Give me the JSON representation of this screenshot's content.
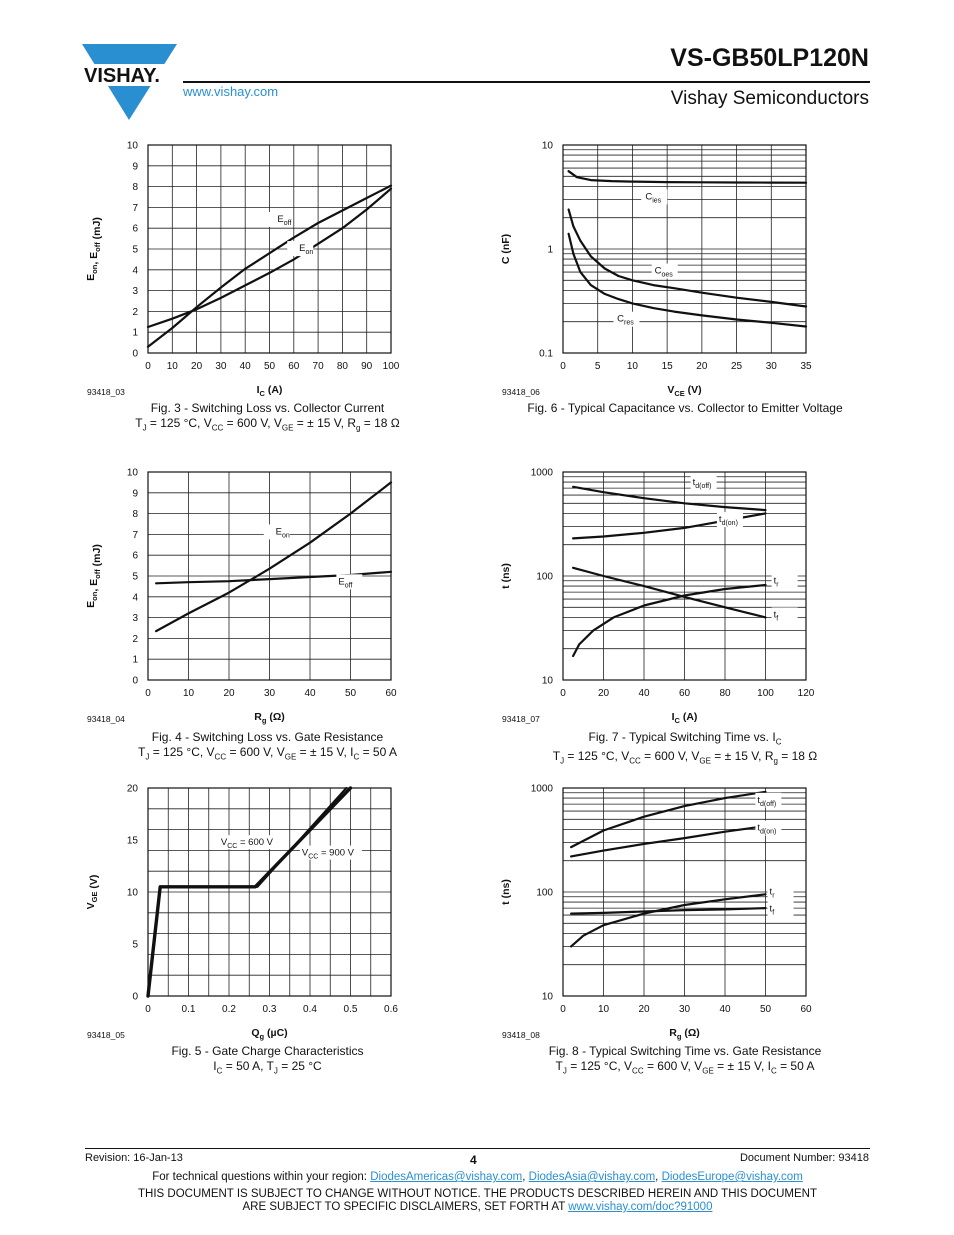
{
  "header": {
    "brand": "VISHAY.",
    "website": "www.vishay.com",
    "part_number": "VS-GB50LP120N",
    "company": "Vishay Semiconductors"
  },
  "figures": [
    {
      "id": "93418_03",
      "caption_1": "Fig. 3 - Switching Loss vs. Collector Current",
      "caption_2": "TJ = 125 °C, VCC = 600 V, VGE = ± 15 V, Rg = 18 Ω"
    },
    {
      "id": "93418_06",
      "caption_1": "Fig. 6 - Typical Capacitance vs. Collector to Emitter Voltage",
      "caption_2": ""
    },
    {
      "id": "93418_04",
      "caption_1": "Fig. 4 - Switching Loss vs. Gate Resistance",
      "caption_2": "TJ = 125 °C, VCC = 600 V, VGE = ± 15 V, IC = 50 A"
    },
    {
      "id": "93418_07",
      "caption_1": "Fig. 7 - Typical Switching Time vs. IC",
      "caption_2": "TJ = 125 °C, VCC = 600 V, VGE = ± 15 V, Rg = 18 Ω"
    },
    {
      "id": "93418_05",
      "caption_1": "Fig. 5 - Gate Charge Characteristics",
      "caption_2": "IC = 50 A, TJ = 25 °C"
    },
    {
      "id": "93418_08",
      "caption_1": "Fig. 8 - Typical Switching Time vs. Gate Resistance",
      "caption_2": "TJ = 125 °C, VCC = 600 V, VGE = ± 15 V, IC = 50 A"
    }
  ],
  "chart_data": [
    {
      "type": "line",
      "id": "93418_03",
      "scale": "linear",
      "xlabel": "IC (A)",
      "ylabel": "Eon, Eoff (mJ)",
      "xlim": [
        0,
        100
      ],
      "ylim": [
        0,
        10
      ],
      "xticks": [
        0,
        10,
        20,
        30,
        40,
        50,
        60,
        70,
        80,
        90,
        100
      ],
      "yticks": [
        0,
        1,
        2,
        3,
        4,
        5,
        6,
        7,
        8,
        9,
        10
      ],
      "series": [
        {
          "name": "Eoff",
          "x": [
            0,
            10,
            20,
            30,
            40,
            50,
            60,
            70,
            80,
            90,
            100
          ],
          "y": [
            1.25,
            1.65,
            2.1,
            2.65,
            3.25,
            3.85,
            4.5,
            5.25,
            6.0,
            6.9,
            7.9
          ]
        },
        {
          "name": "Eon",
          "x": [
            0,
            10,
            20,
            30,
            40,
            50,
            60,
            70,
            80,
            90,
            100
          ],
          "y": [
            0.3,
            1.2,
            2.2,
            3.15,
            4.05,
            4.8,
            5.55,
            6.25,
            6.85,
            7.45,
            8.05
          ]
        }
      ]
    },
    {
      "type": "line",
      "id": "93418_06",
      "scale": "log-y",
      "xlabel": "VCE (V)",
      "ylabel": "C (nF)",
      "xlim": [
        0,
        35
      ],
      "ylim": [
        0.1,
        10
      ],
      "xticks": [
        0,
        5,
        10,
        15,
        20,
        25,
        30,
        35
      ],
      "yticks": [
        0.1,
        1,
        10
      ],
      "series": [
        {
          "name": "Cies",
          "x": [
            0.8,
            2,
            4,
            7,
            10,
            15,
            20,
            25,
            30,
            35
          ],
          "y": [
            5.6,
            4.9,
            4.6,
            4.5,
            4.45,
            4.4,
            4.38,
            4.36,
            4.35,
            4.34
          ]
        },
        {
          "name": "Coes",
          "x": [
            0.8,
            1.5,
            2.5,
            4,
            6,
            8,
            10,
            13,
            16,
            20,
            25,
            30,
            35
          ],
          "y": [
            2.4,
            1.65,
            1.2,
            0.85,
            0.65,
            0.55,
            0.5,
            0.45,
            0.42,
            0.38,
            0.34,
            0.31,
            0.28
          ]
        },
        {
          "name": "Cres",
          "x": [
            0.8,
            1.5,
            2.5,
            4,
            6,
            8,
            10,
            13,
            16,
            20,
            25,
            30,
            35
          ],
          "y": [
            1.4,
            0.9,
            0.6,
            0.45,
            0.37,
            0.33,
            0.3,
            0.27,
            0.25,
            0.23,
            0.21,
            0.195,
            0.18
          ]
        }
      ]
    },
    {
      "type": "line",
      "id": "93418_04",
      "scale": "linear",
      "xlabel": "Rg (Ω)",
      "ylabel": "Eon, Eoff (mJ)",
      "xlim": [
        0,
        60
      ],
      "ylim": [
        0,
        10
      ],
      "xticks": [
        0,
        10,
        20,
        30,
        40,
        50,
        60
      ],
      "yticks": [
        0,
        1,
        2,
        3,
        4,
        5,
        6,
        7,
        8,
        9,
        10
      ],
      "series": [
        {
          "name": "Eon",
          "x": [
            2,
            10,
            20,
            30,
            40,
            50,
            60
          ],
          "y": [
            2.35,
            3.2,
            4.2,
            5.35,
            6.6,
            8.0,
            9.5
          ]
        },
        {
          "name": "Eoff",
          "x": [
            2,
            10,
            20,
            30,
            40,
            50,
            60
          ],
          "y": [
            4.65,
            4.7,
            4.75,
            4.85,
            4.95,
            5.05,
            5.2
          ]
        }
      ]
    },
    {
      "type": "line",
      "id": "93418_07",
      "scale": "log-y",
      "xlabel": "IC (A)",
      "ylabel": "t (ns)",
      "xlim": [
        0,
        120
      ],
      "ylim": [
        10,
        1000
      ],
      "xticks": [
        0,
        20,
        40,
        60,
        80,
        100,
        120
      ],
      "yticks": [
        10,
        100,
        1000
      ],
      "series": [
        {
          "name": "td(off)",
          "x": [
            5,
            20,
            40,
            60,
            80,
            100
          ],
          "y": [
            720,
            640,
            560,
            500,
            460,
            430
          ]
        },
        {
          "name": "td(on)",
          "x": [
            5,
            20,
            40,
            60,
            80,
            100
          ],
          "y": [
            230,
            240,
            260,
            290,
            340,
            400
          ]
        },
        {
          "name": "tr",
          "x": [
            5,
            8,
            15,
            25,
            40,
            60,
            80,
            100
          ],
          "y": [
            17,
            22,
            30,
            40,
            52,
            65,
            75,
            82
          ]
        },
        {
          "name": "tf",
          "x": [
            5,
            20,
            40,
            60,
            80,
            100
          ],
          "y": [
            120,
            100,
            80,
            63,
            50,
            40
          ]
        }
      ]
    },
    {
      "type": "line",
      "id": "93418_05",
      "scale": "linear",
      "xlabel": "Qg (µC)",
      "ylabel": "VGE (V)",
      "xlim": [
        0,
        0.6
      ],
      "ylim": [
        0,
        20
      ],
      "xticks": [
        0,
        0.1,
        0.2,
        0.3,
        0.4,
        0.5,
        0.6
      ],
      "yticks": [
        0,
        5,
        10,
        15,
        20
      ],
      "annotations": [
        "VCC = 600 V",
        "VCC = 900 V"
      ],
      "series": [
        {
          "name": "VCC = 600 V",
          "x": [
            0,
            0.03,
            0.27,
            0.49
          ],
          "y": [
            0,
            10.5,
            10.5,
            20
          ]
        },
        {
          "name": "VCC = 900 V",
          "x": [
            0,
            0.03,
            0.265,
            0.5
          ],
          "y": [
            0,
            10.5,
            10.5,
            20
          ]
        }
      ]
    },
    {
      "type": "line",
      "id": "93418_08",
      "scale": "log-y",
      "xlabel": "Rg (Ω)",
      "ylabel": "t (ns)",
      "xlim": [
        0,
        60
      ],
      "ylim": [
        10,
        1000
      ],
      "xticks": [
        0,
        10,
        20,
        30,
        40,
        50,
        60
      ],
      "yticks": [
        10,
        100,
        1000
      ],
      "series": [
        {
          "name": "td(off)",
          "x": [
            2,
            10,
            20,
            30,
            40,
            50
          ],
          "y": [
            270,
            390,
            530,
            670,
            800,
            920
          ]
        },
        {
          "name": "td(on)",
          "x": [
            2,
            10,
            20,
            30,
            40,
            50
          ],
          "y": [
            220,
            250,
            290,
            330,
            380,
            430
          ]
        },
        {
          "name": "tr",
          "x": [
            2,
            5,
            10,
            20,
            30,
            40,
            50
          ],
          "y": [
            30,
            38,
            48,
            62,
            75,
            85,
            95
          ]
        },
        {
          "name": "tf",
          "x": [
            2,
            10,
            20,
            30,
            40,
            50
          ],
          "y": [
            62,
            63,
            65,
            67,
            68,
            70
          ]
        }
      ]
    }
  ],
  "footer": {
    "revision": "Revision: 16-Jan-13",
    "page": "4",
    "document_number": "Document Number: 93418",
    "contact_prefix": "For technical questions within your region: ",
    "email_americas": "DiodesAmericas@vishay.com",
    "email_asia": "DiodesAsia@vishay.com",
    "email_europe": "DiodesEurope@vishay.com",
    "sep": ", ",
    "disclaimer_1": "THIS DOCUMENT IS SUBJECT TO CHANGE WITHOUT NOTICE. THE PRODUCTS DESCRIBED HEREIN AND THIS DOCUMENT",
    "disclaimer_2_prefix": "ARE SUBJECT TO SPECIFIC DISCLAIMERS, SET FORTH AT ",
    "disclaimer_link": "www.vishay.com/doc?91000"
  }
}
